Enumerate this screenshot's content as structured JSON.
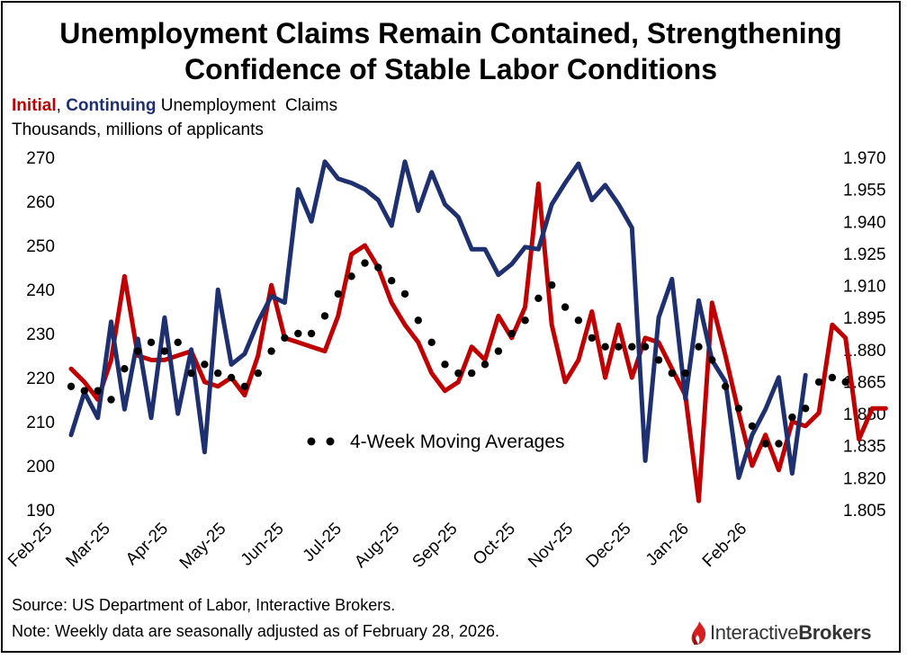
{
  "header": {
    "title_line1": "Unemployment Claims Remain Contained, Strengthening",
    "title_line2": "Confidence of Stable Labor Conditions",
    "subtitle_initial": "Initial",
    "subtitle_sep": ", ",
    "subtitle_continuing": "Continuing",
    "subtitle_rest": " Unemployment  Claims",
    "units": "Thousands, millions of applicants"
  },
  "footer": {
    "source": "Source: US Department of Labor, Interactive Brokers.",
    "note": "Note: Weekly data are seasonally adjusted as of February 28, 2026.",
    "logo_text_a": "Interactive",
    "logo_text_b": "Brokers",
    "logo_icon": "interactive-brokers-flame-icon"
  },
  "colors": {
    "initial": "#c00000",
    "continuing": "#1f3070",
    "moving_average": "#000000"
  },
  "chart_data": {
    "type": "line",
    "x_tick_labels": [
      "Feb-25",
      "Mar-25",
      "Apr-25",
      "May-25",
      "Jun-25",
      "Jul-25",
      "Aug-25",
      "Sep-25",
      "Oct-25",
      "Nov-25",
      "Dec-25",
      "Jan-26",
      "Feb-26"
    ],
    "left_axis": {
      "range": [
        190,
        270
      ],
      "ticks": [
        190,
        200,
        210,
        220,
        230,
        240,
        250,
        260,
        270
      ]
    },
    "right_axis": {
      "range": [
        1.805,
        1.97
      ],
      "ticks": [
        "1.805",
        "1.820",
        "1.835",
        "1.850",
        "1.865",
        "1.880",
        "1.895",
        "1.910",
        "1.925",
        "1.940",
        "1.955",
        "1.970"
      ]
    },
    "annotation": "4-Week Moving Averages",
    "grid": false,
    "series": [
      {
        "axis": "left",
        "values": [
          222,
          219,
          215,
          224,
          243,
          225,
          224,
          224,
          225,
          226,
          219,
          218,
          220,
          216,
          225,
          241,
          229,
          228,
          227,
          226,
          234,
          248,
          250,
          245,
          237,
          232,
          228,
          221,
          217,
          219,
          227,
          224,
          234,
          229,
          236,
          264,
          232,
          219,
          224,
          235,
          220,
          232,
          220,
          229,
          228,
          222,
          216,
          192,
          237,
          225,
          212,
          200,
          207,
          199,
          210,
          209,
          212,
          232,
          229,
          206,
          213,
          213
        ]
      },
      {
        "axis": "right",
        "values": [
          1.84,
          1.86,
          1.848,
          1.893,
          1.852,
          1.885,
          1.848,
          1.895,
          1.85,
          1.88,
          1.832,
          1.908,
          1.873,
          1.878,
          1.893,
          1.905,
          1.902,
          1.955,
          1.94,
          1.968,
          1.96,
          1.958,
          1.955,
          1.95,
          1.938,
          1.968,
          1.945,
          1.963,
          1.948,
          1.942,
          1.927,
          1.927,
          1.915,
          1.92,
          1.928,
          1.927,
          1.948,
          1.958,
          1.967,
          1.95,
          1.957,
          1.948,
          1.937,
          1.828,
          1.895,
          1.913,
          1.857,
          1.903,
          1.875,
          1.865,
          1.82,
          1.84,
          1.852,
          1.867,
          1.822,
          1.868
        ]
      },
      {
        "axis": "left",
        "values": [
          218,
          217,
          217,
          215,
          222,
          226,
          228,
          226,
          228,
          221,
          223,
          221,
          220,
          218,
          221,
          226,
          229,
          230,
          230,
          234,
          239,
          243,
          246,
          245,
          242,
          239,
          233,
          228,
          223,
          221,
          221,
          223,
          226,
          230,
          233,
          238,
          241,
          236,
          233,
          229,
          227,
          227,
          227,
          227,
          224,
          221,
          221,
          227,
          224,
          218,
          213,
          209,
          205,
          205,
          211,
          213,
          219,
          220,
          219
        ]
      }
    ]
  }
}
